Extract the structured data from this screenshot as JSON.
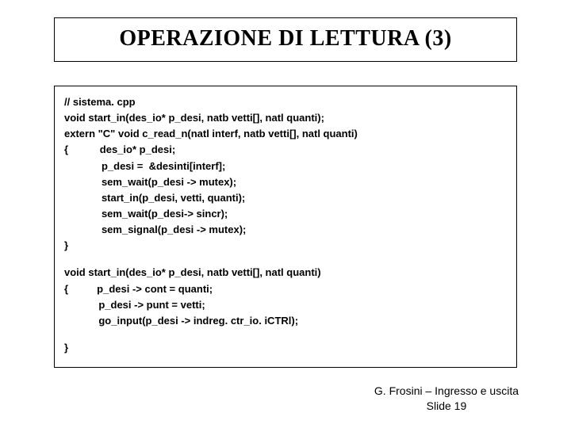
{
  "title": "OPERAZIONE DI LETTURA (3)",
  "code": {
    "l1": "// sistema. cpp",
    "l2": "void start_in(des_io* p_desi, natb vetti[], natl quanti);",
    "l3": "extern \"C\" void c_read_n(natl interf, natb vetti[], natl quanti)",
    "l4": "{           des_io* p_desi;",
    "l5": "             p_desi =  &desinti[interf];",
    "l6": "             sem_wait(p_desi -> mutex);",
    "l7": "             start_in(p_desi, vetti, quanti);",
    "l8": "             sem_wait(p_desi-> sincr);",
    "l9": "             sem_signal(p_desi -> mutex);",
    "l10": "}",
    "l11": "void start_in(des_io* p_desi, natb vetti[], natl quanti)",
    "l12": "{          p_desi -> cont = quanti;",
    "l13": "            p_desi -> punt = vetti;",
    "l14": "            go_input(p_desi -> indreg. ctr_io. iCTRl);",
    "l15": "}"
  },
  "footer_line1": "G. Frosini – Ingresso e uscita",
  "footer_line2": "Slide 19"
}
